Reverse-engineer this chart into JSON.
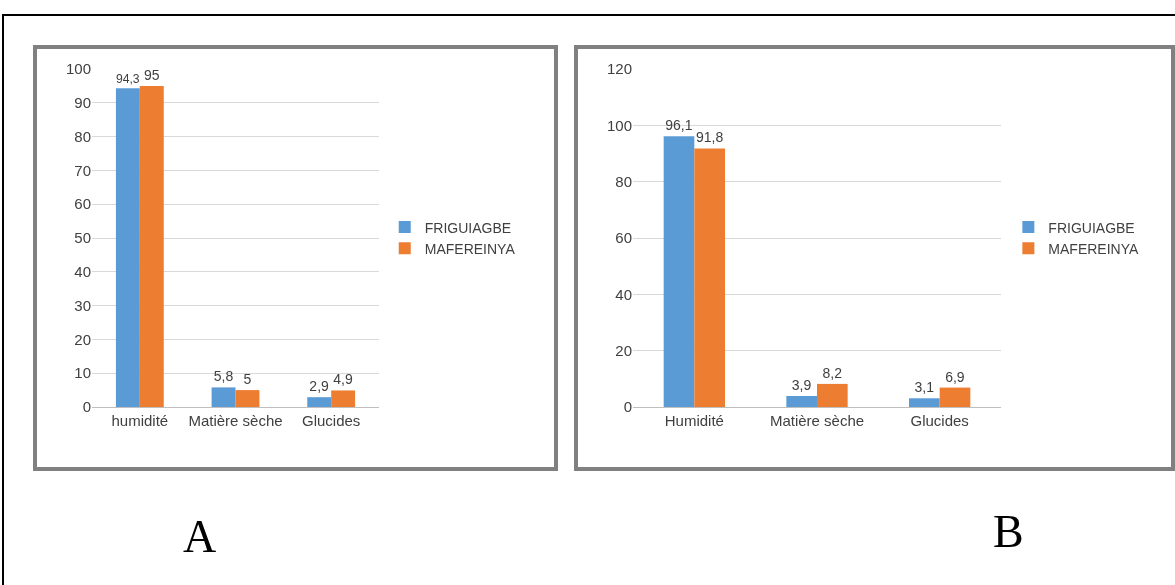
{
  "chart_data": [
    {
      "type": "bar",
      "categories": [
        "humidité",
        "Matière sèche",
        "Glucides"
      ],
      "series": [
        {
          "name": "FRIGUIAGBE",
          "color": "#5b9bd5",
          "values": [
            94.3,
            5.8,
            2.9
          ],
          "value_labels": [
            "94,3",
            "5,8",
            "2,9"
          ]
        },
        {
          "name": "MAFEREINYA",
          "color": "#ed7d31",
          "values": [
            95,
            5,
            4.9
          ],
          "value_labels": [
            "95",
            "5",
            "4,9"
          ]
        }
      ],
      "ylim": [
        0,
        100
      ],
      "yticks": [
        0,
        10,
        20,
        30,
        40,
        50,
        60,
        70,
        80,
        90,
        100
      ],
      "grid": "y",
      "legend": "right",
      "annotations": [
        "A"
      ]
    },
    {
      "type": "bar",
      "categories": [
        "Humidité",
        "Matière sèche",
        "Glucides"
      ],
      "series": [
        {
          "name": "FRIGUIAGBE",
          "color": "#5b9bd5",
          "values": [
            96.1,
            3.9,
            3.1
          ],
          "value_labels": [
            "96,1",
            "3,9",
            "3,1"
          ]
        },
        {
          "name": "MAFEREINYA",
          "color": "#ed7d31",
          "values": [
            91.8,
            8.2,
            6.9
          ],
          "value_labels": [
            "91,8",
            "8,2",
            "6,9"
          ]
        }
      ],
      "ylim": [
        0,
        120
      ],
      "yticks": [
        0,
        20,
        40,
        60,
        80,
        100,
        120
      ],
      "grid": "y",
      "legend": "right",
      "annotations": [
        "B"
      ]
    }
  ]
}
